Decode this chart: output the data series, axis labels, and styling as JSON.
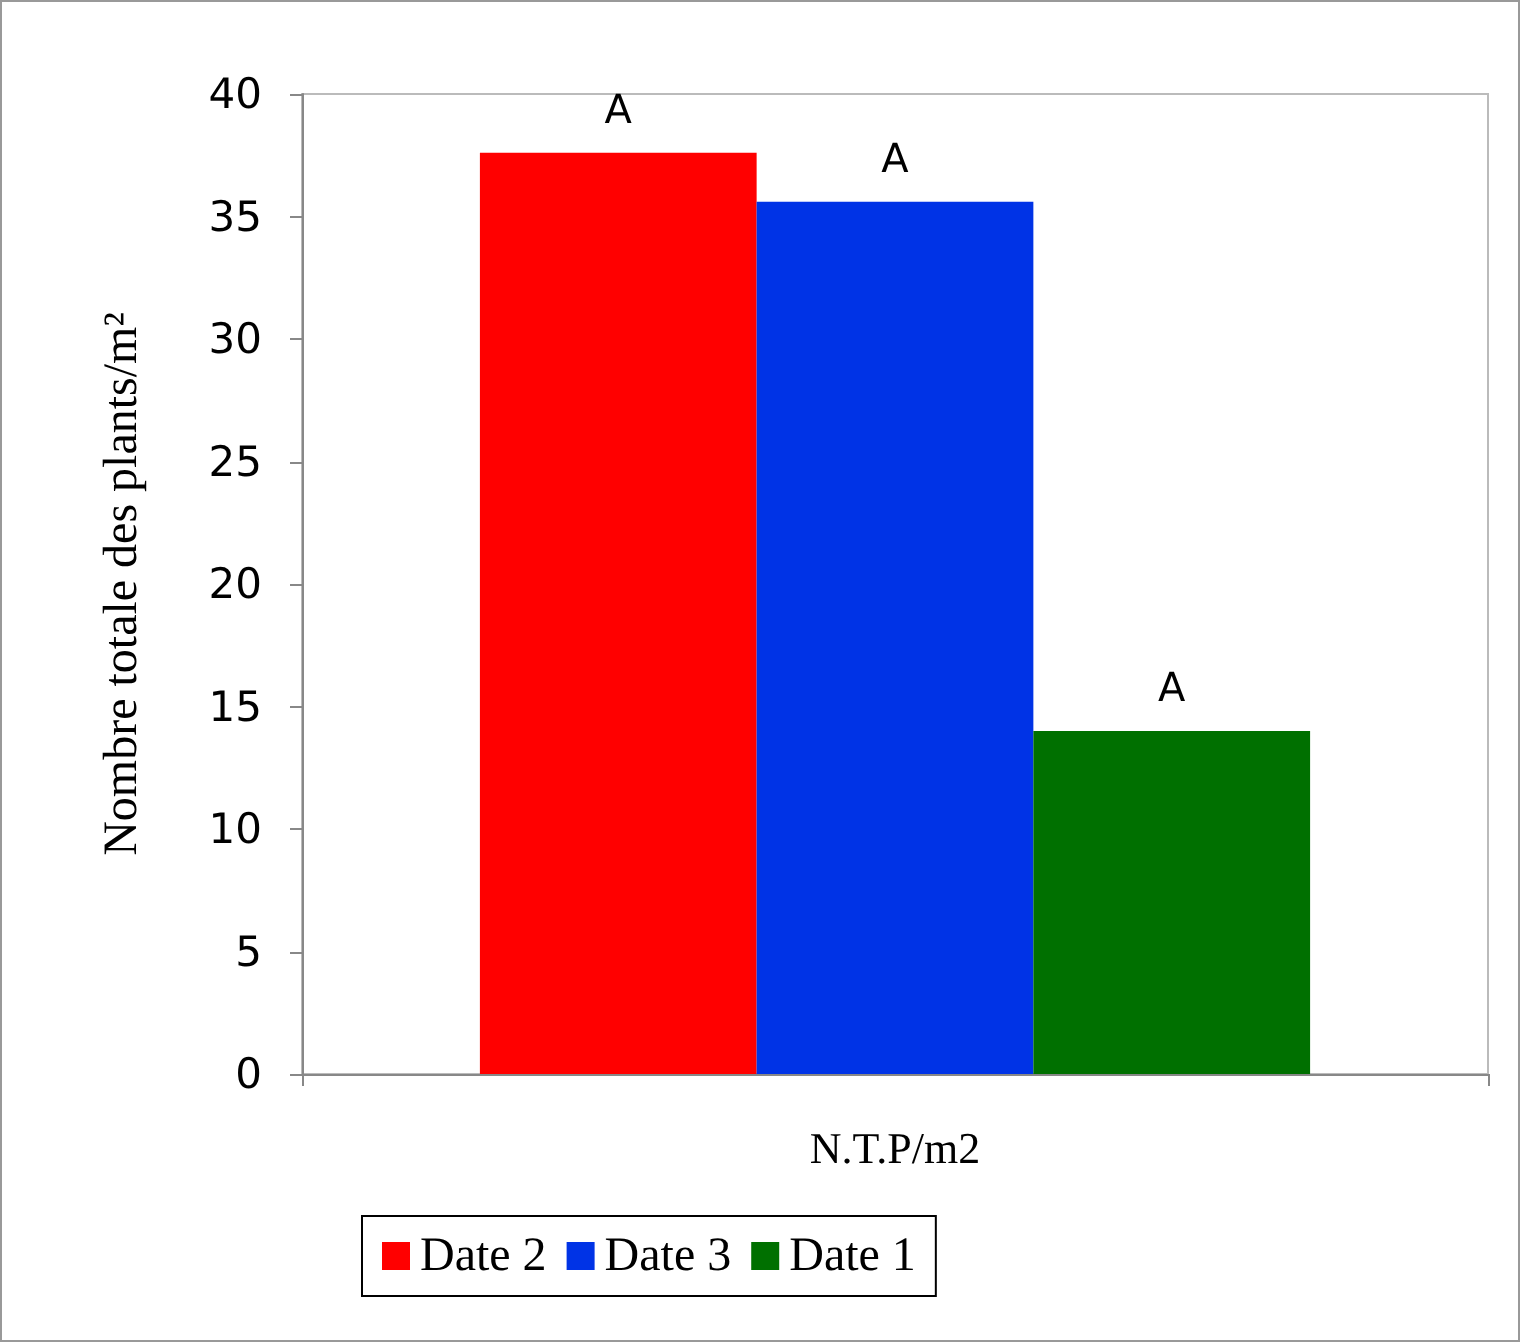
{
  "chart_data": {
    "type": "bar",
    "ylabel": "Nombre totale des plants/m²",
    "categories": [
      "N.T.P/m2"
    ],
    "series": [
      {
        "name": "Date 2",
        "color": "#ff0000",
        "values": [
          37.6
        ],
        "value_labels": [
          "A"
        ]
      },
      {
        "name": "Date 3",
        "color": "#0033e6",
        "values": [
          35.6
        ],
        "value_labels": [
          "A"
        ]
      },
      {
        "name": "Date 1",
        "color": "#007000",
        "values": [
          14.0
        ],
        "value_labels": [
          "A"
        ]
      }
    ],
    "ylim": [
      0,
      40
    ],
    "yticks": [
      0,
      5,
      10,
      15,
      20,
      25,
      30,
      35,
      40
    ],
    "grid": false,
    "legend": "bottom"
  }
}
